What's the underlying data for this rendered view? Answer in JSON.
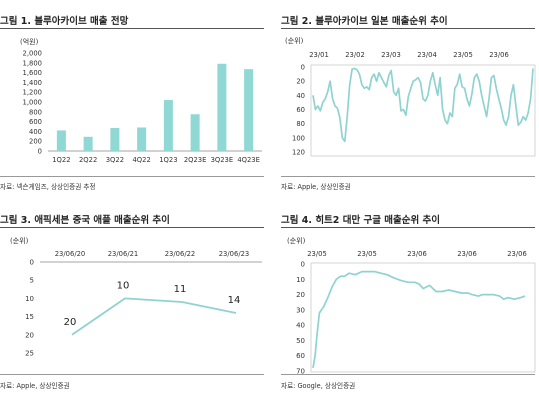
{
  "accent_color": "#8fd8d4",
  "line_color": "#8fd3d0",
  "panels": [
    {
      "title": "그림 1. 블루아카이브 매출 전망",
      "source": "자료: 넥슨게임즈, 상상인증권 추정"
    },
    {
      "title": "그림 2. 블루아카이브 일본 매출순위 추이",
      "source": "자료: Apple, 상상인증권"
    },
    {
      "title": "그림 3. 애픽세븐 중국 애플 매출순위 추이",
      "source": "자료: Apple, 상상인증권"
    },
    {
      "title": "그림 4. 히트2 대만 구글 매출순위 추이",
      "source": "자료: Google, 상상인증권"
    }
  ],
  "chart_data": [
    {
      "type": "bar",
      "unit_label": "(억원)",
      "categories": [
        "1Q22",
        "2Q22",
        "3Q22",
        "4Q22",
        "1Q23",
        "2Q23E",
        "3Q23E",
        "4Q23E"
      ],
      "values": [
        420,
        290,
        470,
        480,
        1040,
        750,
        1780,
        1670
      ],
      "ylim": [
        0,
        2000
      ],
      "yticks": [
        "0",
        "200",
        "400",
        "600",
        "800",
        "1,000",
        "1,200",
        "1,400",
        "1,600",
        "1,800",
        "2,000"
      ],
      "grid": false
    },
    {
      "type": "line",
      "unit_label": "(순위)",
      "y_inverted": true,
      "ylim": [
        0,
        120
      ],
      "yticks": [
        "0",
        "20",
        "40",
        "60",
        "80",
        "100",
        "120"
      ],
      "xtick_labels": [
        "23/01",
        "23/02",
        "23/03",
        "23/04",
        "23/05",
        "23/06"
      ],
      "x_start": "2023-01-01",
      "x": [
        "2023-01-01",
        "2023-01-03",
        "2023-01-05",
        "2023-01-07",
        "2023-01-09",
        "2023-01-11",
        "2023-01-13",
        "2023-01-15",
        "2023-01-17",
        "2023-01-19",
        "2023-01-21",
        "2023-01-23",
        "2023-01-25",
        "2023-01-27",
        "2023-01-29",
        "2023-01-31",
        "2023-02-02",
        "2023-02-04",
        "2023-02-06",
        "2023-02-08",
        "2023-02-10",
        "2023-02-12",
        "2023-02-14",
        "2023-02-16",
        "2023-02-18",
        "2023-02-20",
        "2023-02-22",
        "2023-02-24",
        "2023-02-26",
        "2023-02-28",
        "2023-03-02",
        "2023-03-04",
        "2023-03-06",
        "2023-03-08",
        "2023-03-10",
        "2023-03-12",
        "2023-03-14",
        "2023-03-16",
        "2023-03-18",
        "2023-03-20",
        "2023-03-22",
        "2023-03-24",
        "2023-03-26",
        "2023-03-28",
        "2023-03-30",
        "2023-04-01",
        "2023-04-03",
        "2023-04-05",
        "2023-04-07",
        "2023-04-09",
        "2023-04-11",
        "2023-04-13",
        "2023-04-15",
        "2023-04-17",
        "2023-04-19",
        "2023-04-21",
        "2023-04-23",
        "2023-04-25",
        "2023-04-27",
        "2023-04-29",
        "2023-05-01",
        "2023-05-03",
        "2023-05-05",
        "2023-05-07",
        "2023-05-09",
        "2023-05-11",
        "2023-05-13",
        "2023-05-15",
        "2023-05-17",
        "2023-05-19",
        "2023-05-21",
        "2023-05-23",
        "2023-05-25",
        "2023-05-27",
        "2023-05-29",
        "2023-05-31",
        "2023-06-02",
        "2023-06-04",
        "2023-06-06",
        "2023-06-08",
        "2023-06-10",
        "2023-06-12",
        "2023-06-14",
        "2023-06-16",
        "2023-06-18",
        "2023-06-20",
        "2023-06-22",
        "2023-06-24",
        "2023-06-26",
        "2023-06-28",
        "2023-06-30"
      ],
      "values": [
        40,
        60,
        55,
        62,
        50,
        45,
        35,
        20,
        45,
        55,
        58,
        72,
        100,
        105,
        70,
        25,
        3,
        2,
        4,
        10,
        25,
        30,
        28,
        32,
        15,
        10,
        20,
        8,
        15,
        22,
        28,
        12,
        5,
        35,
        40,
        30,
        62,
        60,
        68,
        42,
        30,
        20,
        18,
        15,
        22,
        45,
        48,
        40,
        20,
        8,
        25,
        40,
        15,
        60,
        75,
        80,
        65,
        70,
        30,
        25,
        10,
        28,
        30,
        45,
        55,
        38,
        15,
        10,
        20,
        40,
        55,
        70,
        45,
        15,
        12,
        30,
        45,
        58,
        75,
        82,
        70,
        40,
        25,
        55,
        82,
        78,
        70,
        75,
        65,
        45,
        2
      ]
    },
    {
      "type": "line",
      "unit_label": "(순위)",
      "y_inverted": true,
      "ylim": [
        0,
        25
      ],
      "yticks": [
        "0",
        "5",
        "10",
        "15",
        "20",
        "25"
      ],
      "categories": [
        "23/06/20",
        "23/06/21",
        "23/06/22",
        "23/06/23"
      ],
      "values": [
        20,
        10,
        11,
        14
      ],
      "data_labels": [
        "20",
        "10",
        "11",
        "14"
      ]
    },
    {
      "type": "line",
      "unit_label": "(순위)",
      "y_inverted": true,
      "ylim": [
        0,
        70
      ],
      "yticks": [
        "0",
        "10",
        "20",
        "30",
        "40",
        "50",
        "60",
        "70"
      ],
      "xtick_labels": [
        "23/05",
        "23/05",
        "23/06",
        "23/06",
        "23/06"
      ],
      "x": [
        0,
        1,
        2,
        3,
        5,
        7,
        9,
        11,
        13,
        15,
        17,
        20,
        23,
        26,
        29,
        32,
        35,
        38,
        40,
        42,
        45,
        48,
        50,
        52,
        55,
        58,
        61,
        64,
        67,
        70,
        73,
        75,
        78,
        80,
        82,
        85,
        88,
        90,
        92,
        95,
        98,
        100
      ],
      "values": [
        68,
        60,
        45,
        32,
        28,
        22,
        15,
        10,
        8,
        8,
        6,
        7,
        5,
        5,
        5,
        6,
        7,
        9,
        10,
        11,
        12,
        12,
        13,
        16,
        14,
        18,
        18,
        17,
        18,
        19,
        19,
        20,
        21,
        20,
        20,
        20,
        21,
        23,
        22,
        23,
        22,
        21
      ]
    }
  ]
}
